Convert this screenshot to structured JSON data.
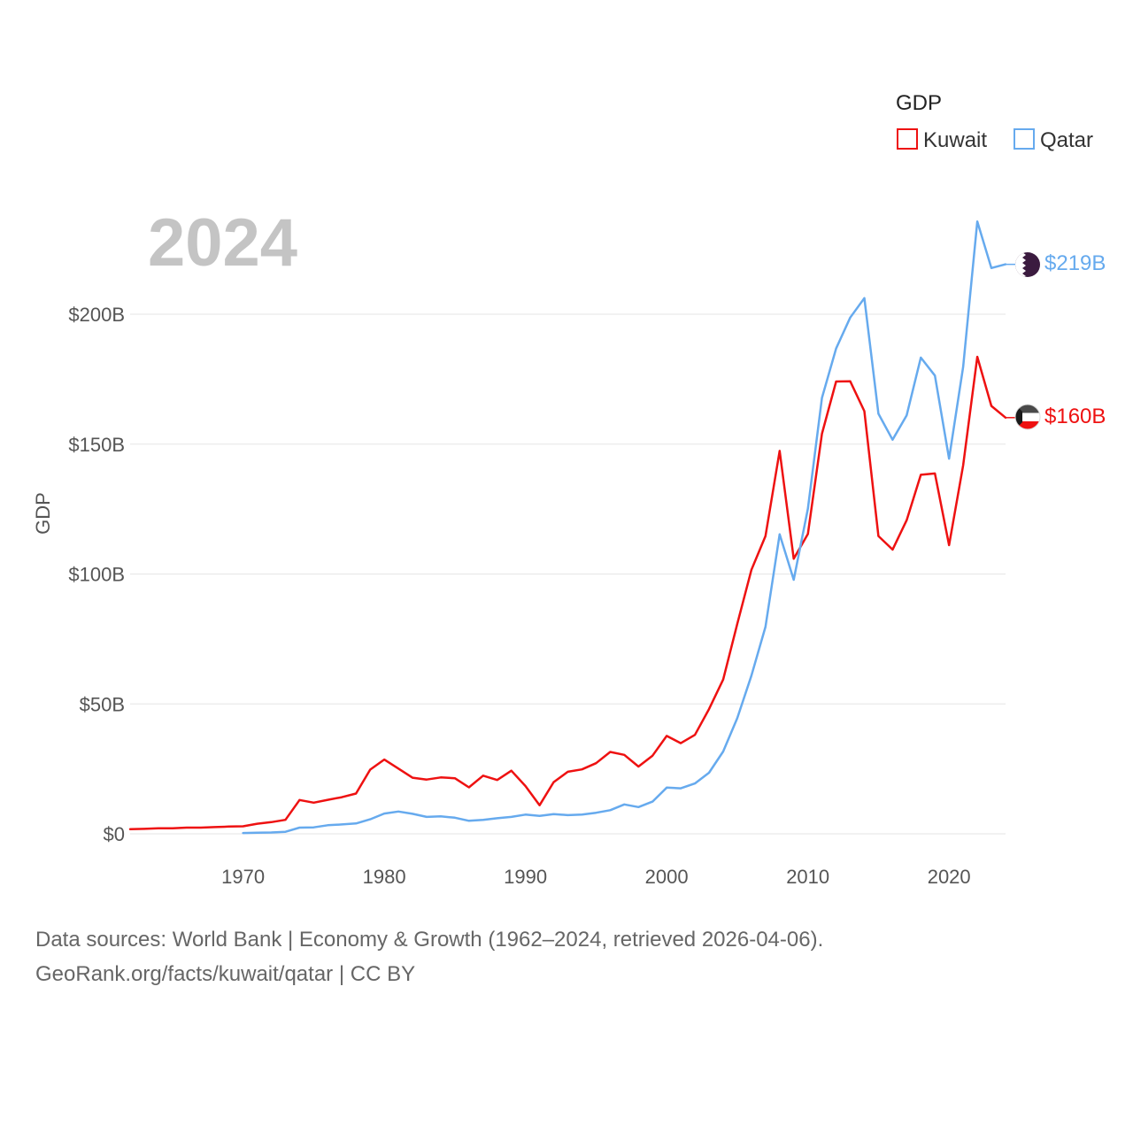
{
  "chart_data": {
    "type": "line",
    "title": "2024",
    "legend_title": "GDP",
    "ylabel": "GDP",
    "xlabel": "",
    "xlim": [
      1962,
      2024
    ],
    "ylim": [
      0,
      200
    ],
    "y_unit": "billions USD",
    "x_ticks": [
      1970,
      1980,
      1990,
      2000,
      2010,
      2020
    ],
    "x_tick_labels": [
      "1970",
      "1980",
      "1990",
      "2000",
      "2010",
      "2020"
    ],
    "y_ticks": [
      0,
      50,
      100,
      150,
      200
    ],
    "y_tick_labels": [
      "$0",
      "$50B",
      "$100B",
      "$150B",
      "$200B"
    ],
    "legend_placement": "top-right",
    "series": [
      {
        "name": "Kuwait",
        "color": "#ee1111",
        "end_label": "$160B",
        "flag_icon": "kuwait-flag-icon",
        "x": [
          1962,
          1963,
          1964,
          1965,
          1966,
          1967,
          1968,
          1969,
          1970,
          1971,
          1972,
          1973,
          1974,
          1975,
          1976,
          1977,
          1978,
          1979,
          1980,
          1981,
          1982,
          1983,
          1984,
          1985,
          1986,
          1987,
          1988,
          1989,
          1990,
          1991,
          1992,
          1993,
          1994,
          1995,
          1996,
          1997,
          1998,
          1999,
          2000,
          2001,
          2002,
          2003,
          2004,
          2005,
          2006,
          2007,
          2008,
          2009,
          2010,
          2011,
          2012,
          2013,
          2014,
          2015,
          2016,
          2017,
          2018,
          2019,
          2020,
          2021,
          2022,
          2023,
          2024
        ],
        "values": [
          1.8,
          1.9,
          2.1,
          2.1,
          2.4,
          2.4,
          2.6,
          2.8,
          2.9,
          3.9,
          4.5,
          5.4,
          13.0,
          12.0,
          13.1,
          14.1,
          15.5,
          24.7,
          28.6,
          25.1,
          21.6,
          20.9,
          21.7,
          21.4,
          17.9,
          22.4,
          20.7,
          24.3,
          18.4,
          11.0,
          19.9,
          23.9,
          24.8,
          27.2,
          31.5,
          30.4,
          25.9,
          30.1,
          37.7,
          34.9,
          38.1,
          48.0,
          59.4,
          80.8,
          101.6,
          114.6,
          147.4,
          105.9,
          115.4,
          154.0,
          174.1,
          174.2,
          162.7,
          114.6,
          109.4,
          120.7,
          138.2,
          138.7,
          111.1,
          141.8,
          183.6,
          164.7,
          160.2
        ]
      },
      {
        "name": "Qatar",
        "color": "#66aaee",
        "end_label": "$219B",
        "flag_icon": "qatar-flag-icon",
        "x": [
          1970,
          1971,
          1972,
          1973,
          1974,
          1975,
          1976,
          1977,
          1978,
          1979,
          1980,
          1981,
          1982,
          1983,
          1984,
          1985,
          1986,
          1987,
          1988,
          1989,
          1990,
          1991,
          1992,
          1993,
          1994,
          1995,
          1996,
          1997,
          1998,
          1999,
          2000,
          2001,
          2002,
          2003,
          2004,
          2005,
          2006,
          2007,
          2008,
          2009,
          2010,
          2011,
          2012,
          2013,
          2014,
          2015,
          2016,
          2017,
          2018,
          2019,
          2020,
          2021,
          2022,
          2023,
          2024
        ],
        "values": [
          0.3,
          0.4,
          0.5,
          0.8,
          2.4,
          2.5,
          3.3,
          3.6,
          4.0,
          5.6,
          7.8,
          8.6,
          7.7,
          6.5,
          6.7,
          6.2,
          5.0,
          5.4,
          6.0,
          6.5,
          7.4,
          6.9,
          7.6,
          7.2,
          7.4,
          8.1,
          9.1,
          11.3,
          10.3,
          12.4,
          17.8,
          17.5,
          19.4,
          23.5,
          31.7,
          44.5,
          60.9,
          79.7,
          115.3,
          97.8,
          125.1,
          167.8,
          186.8,
          198.7,
          206.2,
          161.7,
          151.7,
          161.1,
          183.3,
          176.4,
          144.4,
          179.7,
          235.7,
          217.8,
          219.2
        ]
      }
    ]
  },
  "footer": {
    "line1": "Data sources: World Bank | Economy & Growth (1962–2024, retrieved 2026-04-06).",
    "line2": "GeoRank.org/facts/kuwait/qatar | CC BY"
  }
}
